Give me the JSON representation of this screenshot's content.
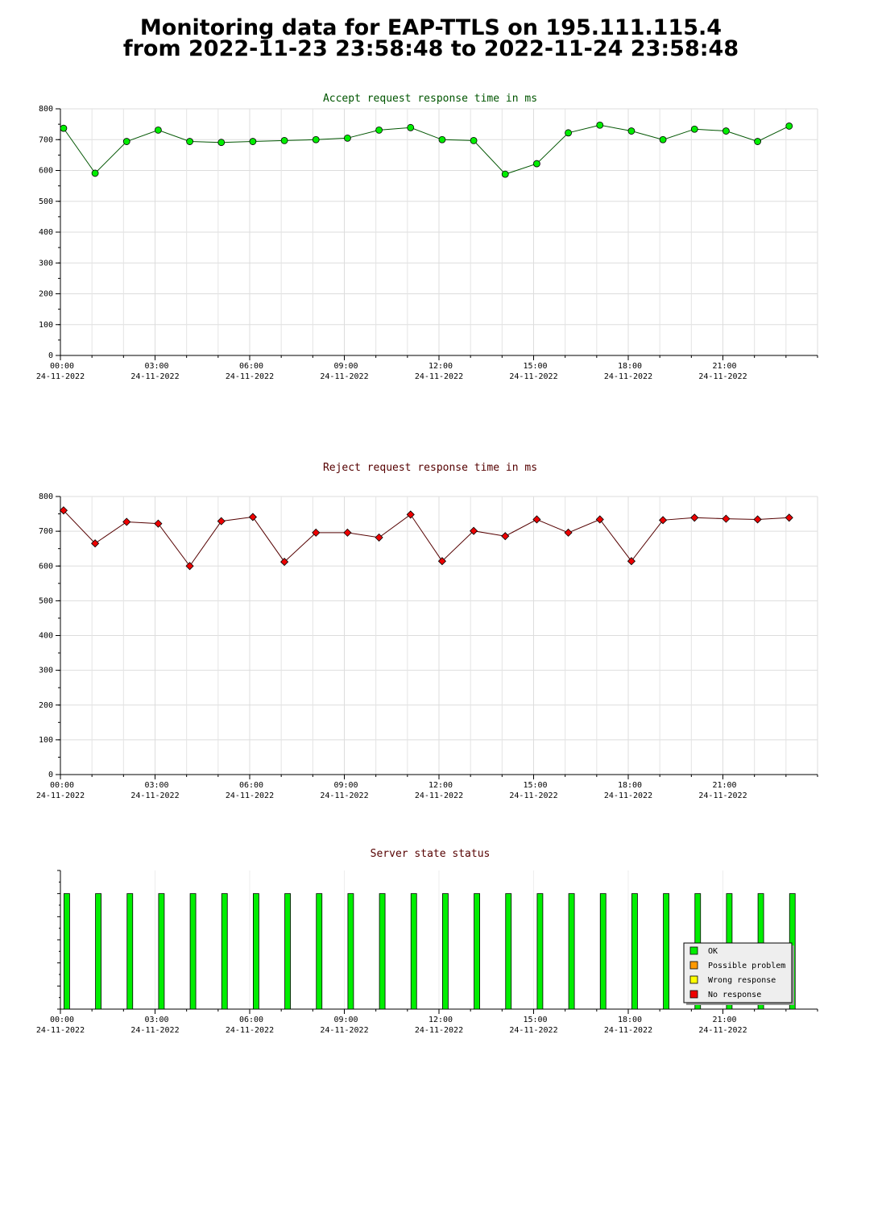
{
  "page": {
    "title_line1": "Monitoring data for EAP-TTLS on 195.111.115.4",
    "title_line2": "from 2022-11-23 23:58:48 to 2022-11-24 23:58:48"
  },
  "colors": {
    "accept_marker": "#00ee00",
    "accept_line": "#005500",
    "accept_title": "#005500",
    "reject_marker": "#ee0000",
    "reject_line": "#550000",
    "reject_title": "#550000",
    "status_title": "#550000",
    "status_ok": "#00ee00",
    "status_possible_problem": "#ff9900",
    "status_wrong_response": "#ffff00",
    "status_no_response": "#ee0000"
  },
  "x_ticks": [
    {
      "hour": 0,
      "time": "00:00",
      "date": "24-11-2022"
    },
    {
      "hour": 3,
      "time": "03:00",
      "date": "24-11-2022"
    },
    {
      "hour": 6,
      "time": "06:00",
      "date": "24-11-2022"
    },
    {
      "hour": 9,
      "time": "09:00",
      "date": "24-11-2022"
    },
    {
      "hour": 12,
      "time": "12:00",
      "date": "24-11-2022"
    },
    {
      "hour": 15,
      "time": "15:00",
      "date": "24-11-2022"
    },
    {
      "hour": 18,
      "time": "18:00",
      "date": "24-11-2022"
    },
    {
      "hour": 21,
      "time": "21:00",
      "date": "24-11-2022"
    }
  ],
  "chart_data": [
    {
      "type": "line",
      "title": "Accept request response time in ms",
      "xlim": [
        0,
        24
      ],
      "ylim": [
        0,
        800
      ],
      "y_ticks": [
        0,
        100,
        200,
        300,
        400,
        500,
        600,
        700,
        800
      ],
      "grid": true,
      "x": [
        0.1,
        1.1,
        2.1,
        3.1,
        4.1,
        5.1,
        6.1,
        7.1,
        8.1,
        9.1,
        10.1,
        11.1,
        12.1,
        13.1,
        14.1,
        15.1,
        16.1,
        17.1,
        18.1,
        19.1,
        20.1,
        21.1,
        22.1,
        23.1
      ],
      "values": [
        737,
        591,
        694,
        731,
        694,
        691,
        694,
        697,
        700,
        705,
        731,
        739,
        700,
        697,
        588,
        622,
        722,
        747,
        728,
        700,
        734,
        728,
        694,
        744
      ]
    },
    {
      "type": "line",
      "title": "Reject request response time in ms",
      "xlim": [
        0,
        24
      ],
      "ylim": [
        0,
        800
      ],
      "y_ticks": [
        0,
        100,
        200,
        300,
        400,
        500,
        600,
        700,
        800
      ],
      "grid": true,
      "x": [
        0.1,
        1.1,
        2.1,
        3.1,
        4.1,
        5.1,
        6.1,
        7.1,
        8.1,
        9.1,
        10.1,
        11.1,
        12.1,
        13.1,
        14.1,
        15.1,
        16.1,
        17.1,
        18.1,
        19.1,
        20.1,
        21.1,
        22.1,
        23.1
      ],
      "values": [
        760,
        665,
        727,
        722,
        600,
        729,
        741,
        612,
        696,
        696,
        682,
        748,
        614,
        701,
        686,
        734,
        696,
        734,
        614,
        732,
        739,
        736,
        734,
        739
      ]
    },
    {
      "type": "bar",
      "title": "Server state status",
      "xlim": [
        0,
        24
      ],
      "x": [
        0.1,
        1.1,
        2.1,
        3.1,
        4.1,
        5.1,
        6.1,
        7.1,
        8.1,
        9.1,
        10.1,
        11.1,
        12.1,
        13.1,
        14.1,
        15.1,
        16.1,
        17.1,
        18.1,
        19.1,
        20.1,
        21.1,
        22.1,
        23.1
      ],
      "states": [
        "OK",
        "OK",
        "OK",
        "OK",
        "OK",
        "OK",
        "OK",
        "OK",
        "OK",
        "OK",
        "OK",
        "OK",
        "OK",
        "OK",
        "OK",
        "OK",
        "OK",
        "OK",
        "OK",
        "OK",
        "OK",
        "OK",
        "OK",
        "OK"
      ],
      "legend_placement": "bottom-right",
      "legend": [
        {
          "label": "OK",
          "color_key": "status_ok"
        },
        {
          "label": "Possible problem",
          "color_key": "status_possible_problem"
        },
        {
          "label": "Wrong response",
          "color_key": "status_wrong_response"
        },
        {
          "label": "No response",
          "color_key": "status_no_response"
        }
      ]
    }
  ]
}
